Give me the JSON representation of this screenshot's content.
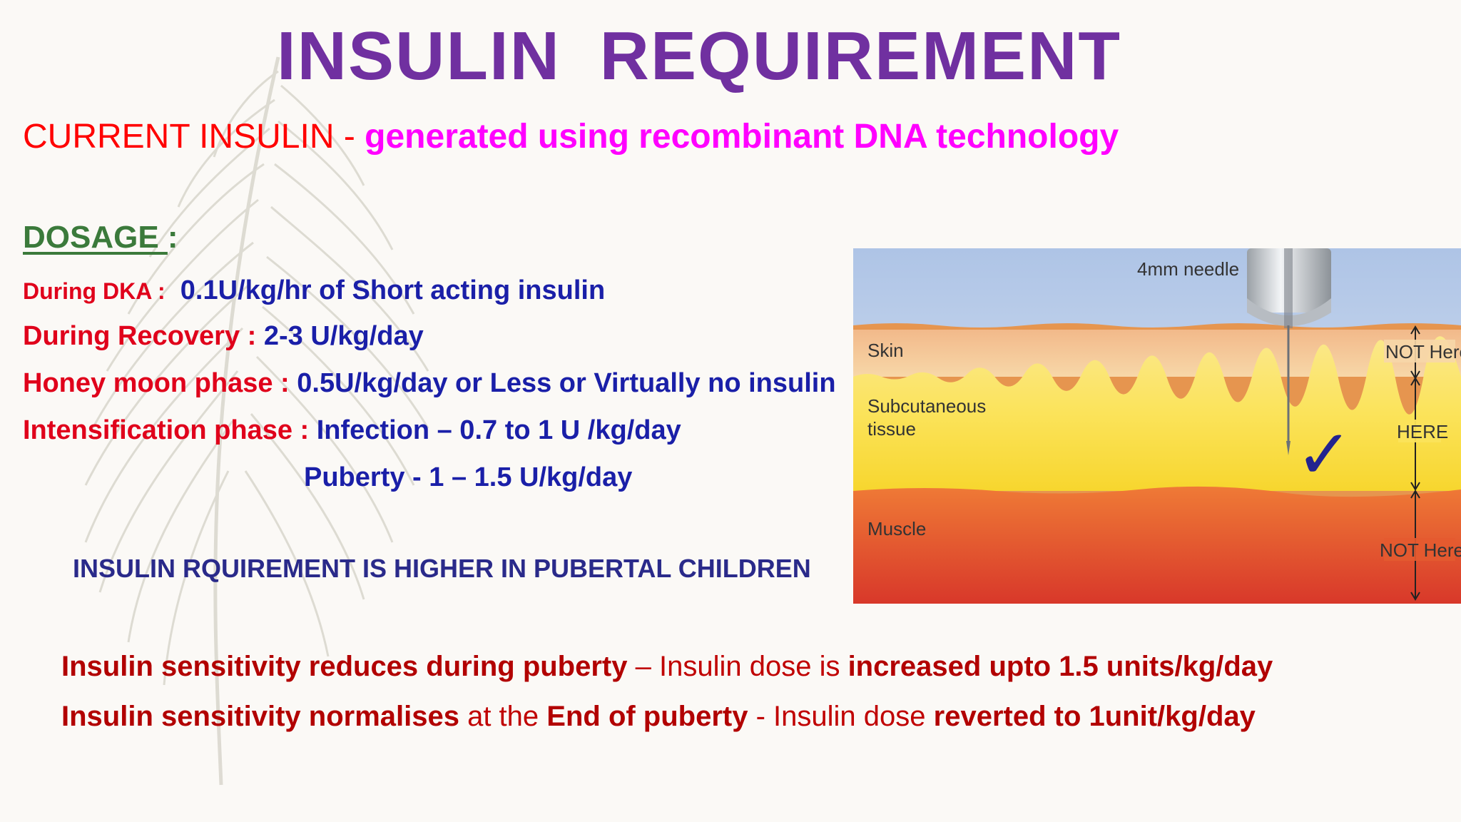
{
  "slide": {
    "title": "INSULIN  REQUIREMENT",
    "current": {
      "label": "CURRENT INSULIN",
      "separator": " - ",
      "text": "generated using recombinant DNA technology"
    },
    "dosage": {
      "heading": "DOSAGE ",
      "colon": ":"
    },
    "dosage_rows": [
      {
        "label": "During  DKA :",
        "value": "0.1U/kg/hr of Short acting   insulin"
      },
      {
        "label": "During Recovery  : ",
        "value": "2-3  U/kg/day"
      },
      {
        "label": "Honey moon phase : ",
        "value": "0.5U/kg/day or Less or Virtually no insulin"
      },
      {
        "label": "Intensification phase : ",
        "value": "Infection – 0.7 to 1 U /kg/day"
      },
      {
        "label": "",
        "value": "Puberty -  1 – 1.5 U/kg/day"
      }
    ],
    "note": "INSULIN RQUIREMENT IS HIGHER IN PUBERTAL CHILDREN",
    "bottom": [
      {
        "part1": "Insulin sensitivity reduces during puberty",
        "part2": " – Insulin dose is ",
        "part3": "increased upto 1.5 units/kg/day",
        "part4": "",
        "part5": ""
      },
      {
        "part1": "Insulin  sensitivity normalises",
        "part2": "  at the ",
        "part3": "End of puberty",
        "part4": " - Insulin dose ",
        "part5": "reverted to 1unit/kg/day"
      }
    ],
    "diagram": {
      "needle_label": "4mm needle",
      "skin": "Skin",
      "subcutaneous_line1": "Subcutaneous",
      "subcutaneous_line2": "tissue",
      "muscle": "Muscle",
      "not_here_top": "NOT Here",
      "here": "HERE",
      "not_here_bottom": "NOT Here",
      "checkmark": "✓"
    }
  },
  "colors": {
    "title": "#7030a0",
    "label_red": "#ff0000",
    "value_blue": "#1a1fa8",
    "magenta": "#ff00ff",
    "dosage_green": "#3b7a3b",
    "bottom_red": "#c00000"
  }
}
